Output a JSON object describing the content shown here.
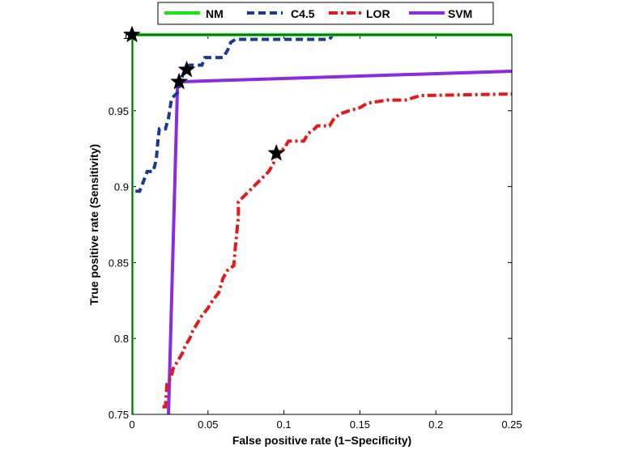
{
  "chart_data": {
    "type": "line",
    "title": "",
    "xlabel": "False positive rate (1−Specificity)",
    "ylabel": "True positive rate (Sensitivity)",
    "xlim": [
      0,
      0.25
    ],
    "ylim": [
      0.75,
      1.0
    ],
    "xticks": [
      0,
      0.05,
      0.1,
      0.15,
      0.2,
      0.25
    ],
    "xtick_labels": [
      "0",
      "0.05",
      "0.1",
      "0.15",
      "0.2",
      "0.25"
    ],
    "yticks": [
      0.75,
      0.8,
      0.85,
      0.9,
      0.95,
      1.0
    ],
    "ytick_labels": [
      "0.75",
      "0.8",
      "0.85",
      "0.9",
      "0.95",
      "1"
    ],
    "grid": false,
    "legend_position": "top-center",
    "series": [
      {
        "name": "NM",
        "color": "#19e619",
        "style": "solid",
        "points": [
          [
            0,
            0.75
          ],
          [
            0,
            1.0
          ],
          [
            0.25,
            1.0
          ]
        ],
        "marker": [
          0,
          1.0
        ]
      },
      {
        "name": "C4.5",
        "color": "#1a3a8f",
        "style": "dashed",
        "points": [
          [
            0,
            0.75
          ],
          [
            0,
            0.897
          ],
          [
            0.005,
            0.897
          ],
          [
            0.007,
            0.902
          ],
          [
            0.01,
            0.91
          ],
          [
            0.014,
            0.91
          ],
          [
            0.016,
            0.918
          ],
          [
            0.017,
            0.93
          ],
          [
            0.018,
            0.938
          ],
          [
            0.022,
            0.938
          ],
          [
            0.024,
            0.945
          ],
          [
            0.026,
            0.958
          ],
          [
            0.03,
            0.962
          ],
          [
            0.032,
            0.97
          ],
          [
            0.034,
            0.975
          ],
          [
            0.038,
            0.98
          ],
          [
            0.046,
            0.98
          ],
          [
            0.048,
            0.985
          ],
          [
            0.06,
            0.985
          ],
          [
            0.063,
            0.99
          ],
          [
            0.065,
            0.995
          ],
          [
            0.068,
            0.997
          ],
          [
            0.13,
            0.997
          ],
          [
            0.132,
            1.0
          ],
          [
            0.25,
            1.0
          ]
        ],
        "marker": [
          0.036,
          0.977
        ]
      },
      {
        "name": "LOR",
        "color": "#e61919",
        "style": "dashdot",
        "points": [
          [
            0.02,
            0.755
          ],
          [
            0.022,
            0.755
          ],
          [
            0.023,
            0.77
          ],
          [
            0.026,
            0.775
          ],
          [
            0.027,
            0.78
          ],
          [
            0.03,
            0.785
          ],
          [
            0.033,
            0.79
          ],
          [
            0.035,
            0.795
          ],
          [
            0.038,
            0.8
          ],
          [
            0.04,
            0.805
          ],
          [
            0.043,
            0.81
          ],
          [
            0.046,
            0.815
          ],
          [
            0.05,
            0.82
          ],
          [
            0.053,
            0.825
          ],
          [
            0.057,
            0.83
          ],
          [
            0.06,
            0.84
          ],
          [
            0.063,
            0.845
          ],
          [
            0.067,
            0.848
          ],
          [
            0.068,
            0.86
          ],
          [
            0.069,
            0.87
          ],
          [
            0.07,
            0.88
          ],
          [
            0.07,
            0.89
          ],
          [
            0.075,
            0.895
          ],
          [
            0.08,
            0.9
          ],
          [
            0.085,
            0.905
          ],
          [
            0.09,
            0.91
          ],
          [
            0.093,
            0.915
          ],
          [
            0.095,
            0.922
          ],
          [
            0.1,
            0.925
          ],
          [
            0.103,
            0.93
          ],
          [
            0.113,
            0.93
          ],
          [
            0.116,
            0.935
          ],
          [
            0.12,
            0.938
          ],
          [
            0.122,
            0.94
          ],
          [
            0.13,
            0.94
          ],
          [
            0.133,
            0.945
          ],
          [
            0.137,
            0.948
          ],
          [
            0.143,
            0.95
          ],
          [
            0.15,
            0.952
          ],
          [
            0.155,
            0.955
          ],
          [
            0.168,
            0.957
          ],
          [
            0.18,
            0.957
          ],
          [
            0.19,
            0.96
          ],
          [
            0.25,
            0.961
          ]
        ],
        "marker": [
          0.095,
          0.922
        ]
      },
      {
        "name": "SVM",
        "color": "#8a2be2",
        "style": "solid",
        "points": [
          [
            0.024,
            0.75
          ],
          [
            0.03,
            0.969
          ],
          [
            0.25,
            0.976
          ]
        ],
        "marker": [
          0.031,
          0.969
        ]
      }
    ]
  }
}
